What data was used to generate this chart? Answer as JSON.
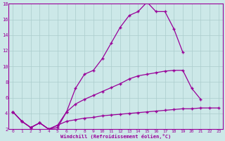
{
  "line1_x": [
    0,
    1,
    2,
    3,
    4,
    5,
    6,
    7,
    8,
    9,
    10,
    11,
    12,
    13,
    14,
    15,
    16,
    17,
    18,
    19
  ],
  "line1_y": [
    4.2,
    3.0,
    2.2,
    2.8,
    2.0,
    2.2,
    4.2,
    7.2,
    9.0,
    9.5,
    11.0,
    13.0,
    15.0,
    16.5,
    17.0,
    18.2,
    17.0,
    17.0,
    14.8,
    11.8
  ],
  "line2_x": [
    0,
    1,
    2,
    3,
    4,
    5,
    6,
    7,
    8,
    9,
    10,
    11,
    12,
    13,
    14,
    15,
    16,
    17,
    18,
    19,
    20,
    21
  ],
  "line2_y": [
    4.2,
    3.0,
    2.2,
    2.8,
    2.0,
    2.5,
    4.2,
    5.2,
    5.8,
    6.3,
    6.8,
    7.3,
    7.8,
    8.4,
    8.8,
    9.0,
    9.2,
    9.4,
    9.5,
    9.5,
    7.2,
    5.8
  ],
  "line3_x": [
    0,
    1,
    2,
    3,
    4,
    5,
    6,
    7,
    8,
    9,
    10,
    11,
    12,
    13,
    14,
    15,
    16,
    17,
    18,
    19,
    20,
    21,
    22,
    23
  ],
  "line3_y": [
    4.2,
    3.0,
    2.2,
    2.8,
    2.0,
    2.5,
    3.0,
    3.2,
    3.4,
    3.5,
    3.7,
    3.8,
    3.9,
    4.0,
    4.1,
    4.2,
    4.3,
    4.4,
    4.5,
    4.6,
    4.6,
    4.7,
    4.7,
    4.7
  ],
  "color": "#990099",
  "bg_color": "#cce8e8",
  "grid_color": "#aacccc",
  "xlabel": "Windchill (Refroidissement éolien,°C)",
  "xlim": [
    -0.5,
    23.5
  ],
  "ylim": [
    2,
    18
  ],
  "xticks": [
    0,
    1,
    2,
    3,
    4,
    5,
    6,
    7,
    8,
    9,
    10,
    11,
    12,
    13,
    14,
    15,
    16,
    17,
    18,
    19,
    20,
    21,
    22,
    23
  ],
  "yticks": [
    2,
    4,
    6,
    8,
    10,
    12,
    14,
    16,
    18
  ]
}
